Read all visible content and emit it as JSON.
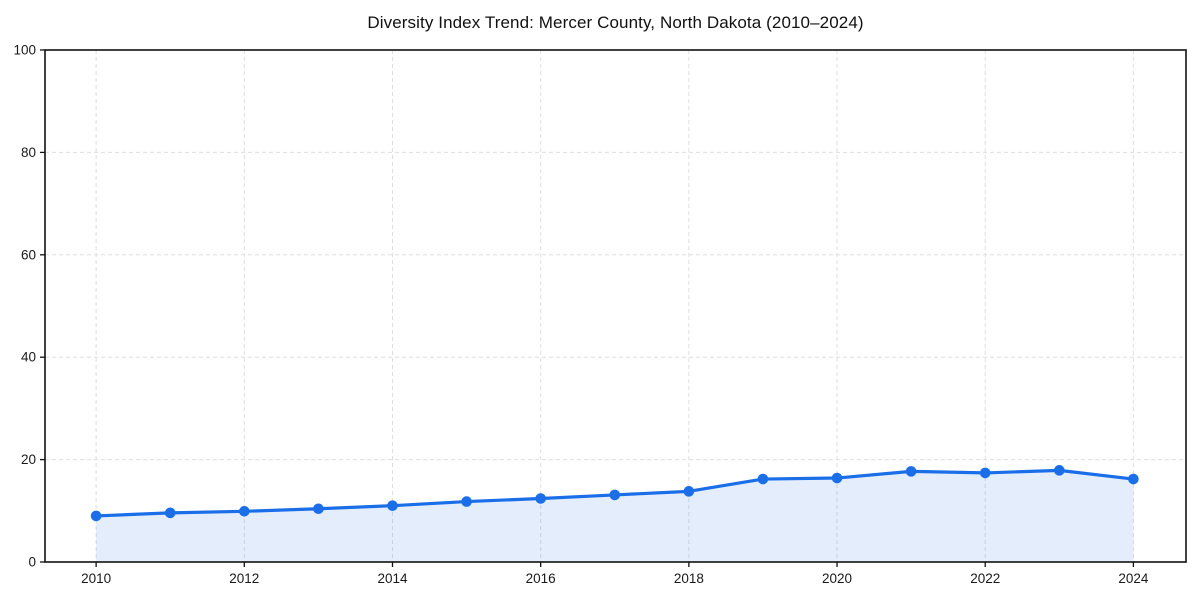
{
  "title": "Diversity Index Trend: Mercer County, North Dakota (2010–2024)",
  "chart_data": {
    "type": "line",
    "title": "Diversity Index Trend: Mercer County, North Dakota (2010–2024)",
    "x": [
      2010,
      2011,
      2012,
      2013,
      2014,
      2015,
      2016,
      2017,
      2018,
      2019,
      2020,
      2021,
      2022,
      2023,
      2024
    ],
    "series": [
      {
        "name": "Diversity Index",
        "values": [
          9.0,
          9.6,
          9.9,
          10.4,
          11.0,
          11.8,
          12.4,
          13.1,
          13.8,
          16.2,
          16.4,
          17.7,
          17.4,
          17.9,
          16.2
        ]
      }
    ],
    "xlabel": "",
    "ylabel": "",
    "xlim": [
      2009.31,
      2024.71
    ],
    "ylim": [
      0,
      100
    ],
    "x_ticks": [
      2010,
      2012,
      2014,
      2016,
      2018,
      2020,
      2022,
      2024
    ],
    "y_ticks": [
      0,
      20,
      40,
      60,
      80,
      100
    ],
    "grid": true,
    "grid_style": "dashed",
    "legend_position": "none",
    "area_under_line": true,
    "colors": {
      "line": "#1a6ee8",
      "marker": "#1a6ee8",
      "area_fill": "#1a6ee8",
      "area_fill_opacity": 0.12,
      "gridline": "#dedede",
      "spine": "#111111",
      "tick_label": "#1a1a1a",
      "background": "#ffffff"
    }
  }
}
